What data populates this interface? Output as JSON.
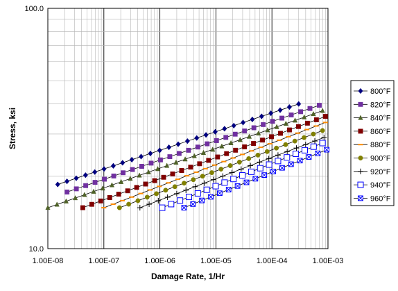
{
  "chart_data": {
    "type": "line",
    "title": "",
    "xlabel": "Damage Rate, 1/Hr",
    "ylabel": "Stress, ksi",
    "x_scale": "log",
    "y_scale": "log",
    "xlim": [
      1e-08,
      0.001
    ],
    "ylim": [
      10,
      100
    ],
    "x_tick_labels": [
      "1.00E-08",
      "1.00E-07",
      "1.00E-06",
      "1.00E-05",
      "1.00E-04",
      "1.00E-03"
    ],
    "y_tick_labels": [
      "10.0",
      "100.0"
    ],
    "grid": true,
    "legend_position": "right",
    "series": [
      {
        "name": "800°F",
        "color": "#000080",
        "marker": "diamond",
        "x_start": 1.5e-08,
        "x_end": 0.0003,
        "y_start": 18.5,
        "y_end": 40
      },
      {
        "name": "820°F",
        "color": "#7030a0",
        "marker": "square",
        "x_start": 2.2e-08,
        "x_end": 0.0007,
        "y_start": 17.2,
        "y_end": 39.5
      },
      {
        "name": "840°F",
        "color": "#4f6228",
        "marker": "triangle",
        "x_start": 1e-08,
        "x_end": 0.0008,
        "y_start": 14.8,
        "y_end": 37.5
      },
      {
        "name": "860°F",
        "color": "#800000",
        "marker": "filled-square",
        "x_start": 4.2e-08,
        "x_end": 0.0009,
        "y_start": 14.8,
        "y_end": 35.5
      },
      {
        "name": "880°F",
        "color": "#ff8c00",
        "marker": "dash",
        "x_start": 1e-07,
        "x_end": 0.0009,
        "y_start": 14.8,
        "y_end": 33.5
      },
      {
        "name": "900°F",
        "color": "#808000",
        "marker": "circle",
        "x_start": 1.9e-07,
        "x_end": 0.0008,
        "y_start": 14.8,
        "y_end": 31
      },
      {
        "name": "920°F",
        "color": "#000000",
        "marker": "plus",
        "x_start": 4.4e-07,
        "x_end": 0.00085,
        "y_start": 14.8,
        "y_end": 29
      },
      {
        "name": "940°F",
        "color": "#0000ff",
        "marker": "open-square",
        "x_start": 1.1e-06,
        "x_end": 0.0008,
        "y_start": 14.8,
        "y_end": 27.5
      },
      {
        "name": "960°F",
        "color": "#0000ff",
        "marker": "x-square",
        "x_start": 2.7e-06,
        "x_end": 0.00095,
        "y_start": 14.8,
        "y_end": 25.8
      }
    ]
  }
}
